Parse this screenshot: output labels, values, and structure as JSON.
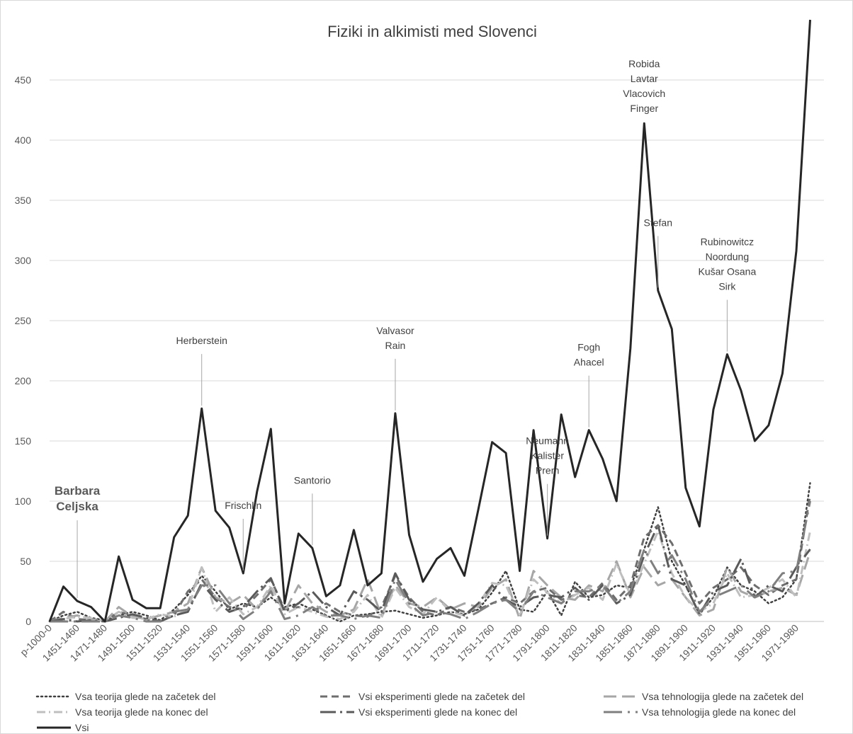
{
  "chart_data": {
    "type": "line",
    "title": "Fiziki in alkimisti med Slovenci",
    "xlabel": "",
    "ylabel": "",
    "ylim": [
      0,
      500
    ],
    "y_ticks": [
      0,
      50,
      100,
      150,
      200,
      250,
      300,
      350,
      400,
      450
    ],
    "grid": true,
    "legend_position": "bottom",
    "categories": [
      "p-1000-0",
      "1441-1450",
      "1451-1460",
      "1461-1470",
      "1471-1480",
      "1481-1490",
      "1491-1500",
      "1501-1510",
      "1511-1520",
      "1521-1530",
      "1531-1540",
      "1541-1550",
      "1551-1560",
      "1561-1570",
      "1571-1580",
      "1581-1590",
      "1591-1600",
      "1601-1610",
      "1611-1620",
      "1621-1630",
      "1631-1640",
      "1641-1650",
      "1651-1660",
      "1661-1670",
      "1671-1680",
      "1681-1690",
      "1691-1700",
      "1701-1710",
      "1711-1720",
      "1721-1730",
      "1731-1740",
      "1741-1750",
      "1751-1760",
      "1761-1770",
      "1771-1780",
      "1781-1790",
      "1791-1800",
      "1801-1810",
      "1811-1820",
      "1821-1830",
      "1831-1840",
      "1841-1850",
      "1851-1860",
      "1861-1870",
      "1871-1880",
      "1881-1890",
      "1891-1900",
      "1901-1910",
      "1911-1920",
      "1921-1930",
      "1931-1940",
      "1941-1950",
      "1951-1960",
      "1961-1970",
      "1971-1980",
      "1981-1990"
    ],
    "shown_tick_labels": [
      "p-1000-0",
      "1451-1460",
      "1471-1480",
      "1491-1500",
      "1511-1520",
      "1531-1540",
      "1551-1560",
      "1571-1580",
      "1591-1600",
      "1611-1620",
      "1631-1640",
      "1651-1660",
      "1671-1680",
      "1691-1700",
      "1711-1720",
      "1731-1740",
      "1751-1760",
      "1771-1780",
      "1791-1800",
      "1811-1820",
      "1831-1840",
      "1851-1860",
      "1871-1880",
      "1891-1900",
      "1911-1920",
      "1931-1940",
      "1951-1960",
      "1971-1980"
    ],
    "series": [
      {
        "name": "Vsa teorija glede na začetek del",
        "color": "#404040",
        "dash": "dot",
        "values": [
          0,
          5,
          8,
          3,
          1,
          5,
          8,
          5,
          1,
          10,
          22,
          38,
          25,
          10,
          15,
          12,
          20,
          12,
          15,
          10,
          5,
          0,
          5,
          6,
          8,
          9,
          6,
          3,
          5,
          8,
          6,
          10,
          24,
          42,
          10,
          8,
          25,
          5,
          33,
          20,
          22,
          30,
          28,
          60,
          95,
          50,
          30,
          6,
          20,
          45,
          30,
          25,
          15,
          20,
          35,
          115
        ]
      },
      {
        "name": "Vsi eksperimenti glede na začetek del",
        "color": "#6e6e6e",
        "dash": "dash",
        "values": [
          0,
          8,
          2,
          1,
          0,
          8,
          5,
          2,
          0,
          5,
          25,
          35,
          20,
          12,
          10,
          22,
          35,
          10,
          12,
          8,
          15,
          8,
          5,
          4,
          12,
          38,
          20,
          8,
          5,
          12,
          8,
          10,
          15,
          20,
          15,
          25,
          28,
          18,
          22,
          20,
          32,
          18,
          30,
          70,
          80,
          65,
          40,
          15,
          28,
          35,
          45,
          30,
          22,
          30,
          35,
          105
        ]
      },
      {
        "name": "Vsa tehnologija glede na začetek del",
        "color": "#a6a6a6",
        "dash": "longdash",
        "values": [
          0,
          3,
          5,
          2,
          0,
          12,
          4,
          2,
          5,
          8,
          15,
          45,
          20,
          15,
          22,
          10,
          28,
          8,
          30,
          15,
          8,
          5,
          10,
          35,
          5,
          30,
          15,
          12,
          20,
          10,
          15,
          12,
          28,
          35,
          2,
          42,
          30,
          20,
          18,
          30,
          25,
          50,
          20,
          45,
          30,
          35,
          20,
          5,
          10,
          45,
          25,
          20,
          25,
          28,
          22,
          58
        ]
      },
      {
        "name": "Vsa teorija glede na konec del",
        "color": "#bfbfbf",
        "dash": "dashdot",
        "values": [
          0,
          2,
          4,
          3,
          0,
          8,
          3,
          2,
          6,
          4,
          10,
          45,
          8,
          20,
          6,
          12,
          30,
          6,
          12,
          8,
          4,
          2,
          8,
          22,
          3,
          28,
          12,
          6,
          20,
          8,
          5,
          14,
          32,
          30,
          5,
          35,
          24,
          15,
          22,
          28,
          18,
          48,
          22,
          48,
          75,
          40,
          20,
          8,
          15,
          40,
          20,
          22,
          28,
          35,
          20,
          75
        ]
      },
      {
        "name": "Vsi eksperimenti glede na konec del",
        "color": "#5a5a5a",
        "dash": "dashdot2",
        "values": [
          0,
          2,
          0,
          1,
          0,
          3,
          6,
          3,
          0,
          5,
          8,
          32,
          18,
          8,
          12,
          25,
          36,
          8,
          15,
          25,
          12,
          5,
          25,
          18,
          8,
          40,
          18,
          10,
          8,
          12,
          5,
          15,
          30,
          18,
          12,
          20,
          22,
          20,
          28,
          18,
          30,
          15,
          22,
          55,
          80,
          35,
          30,
          6,
          25,
          30,
          52,
          20,
          30,
          25,
          45,
          60
        ]
      },
      {
        "name": "Vsa tehnologija glede na konec del",
        "color": "#7f7f7f",
        "dash": "dashdot3",
        "values": [
          0,
          0,
          0,
          0,
          0,
          5,
          3,
          0,
          0,
          8,
          10,
          30,
          30,
          15,
          2,
          10,
          25,
          2,
          5,
          12,
          5,
          5,
          2,
          5,
          3,
          35,
          15,
          5,
          8,
          6,
          2,
          8,
          15,
          18,
          8,
          25,
          20,
          15,
          25,
          25,
          30,
          15,
          25,
          60,
          40,
          55,
          35,
          8,
          20,
          25,
          30,
          20,
          25,
          40,
          42,
          100
        ]
      },
      {
        "name": "Vsi",
        "color": "#262626",
        "dash": "solid",
        "values": [
          0,
          29,
          17,
          12,
          0,
          54,
          18,
          11,
          11,
          70,
          88,
          177,
          92,
          78,
          40,
          108,
          160,
          15,
          73,
          61,
          21,
          30,
          76,
          30,
          40,
          173,
          72,
          33,
          52,
          61,
          38,
          93,
          149,
          140,
          42,
          159,
          69,
          172,
          120,
          159,
          135,
          100,
          227,
          414,
          275,
          243,
          111,
          79,
          176,
          222,
          192,
          150,
          163,
          206,
          308,
          500
        ]
      }
    ],
    "annotations": [
      {
        "lines": [
          "Barbara",
          "Celjska"
        ],
        "category": "1451-1460",
        "bold": true
      },
      {
        "lines": [
          "Herberstein"
        ],
        "category": "1541-1550"
      },
      {
        "lines": [
          "Frischlin"
        ],
        "category": "1571-1580"
      },
      {
        "lines": [
          "Santorio"
        ],
        "category": "1621-1630"
      },
      {
        "lines": [
          "Valvasor",
          "Rain"
        ],
        "category": "1681-1690"
      },
      {
        "lines": [
          "Neumann",
          "Kalister",
          "Prem"
        ],
        "category": "1791-1800"
      },
      {
        "lines": [
          "Fogh",
          "Ahacel"
        ],
        "category": "1821-1830"
      },
      {
        "lines": [
          "Robida",
          "Lavtar",
          "Vlacovich",
          "Finger"
        ],
        "category": "1861-1870"
      },
      {
        "lines": [
          "Stefan"
        ],
        "category": "1871-1880"
      },
      {
        "lines": [
          "Rubinowitcz",
          "Noordung",
          "Kušar Osana",
          "Sirk"
        ],
        "category": "1921-1930"
      }
    ]
  }
}
